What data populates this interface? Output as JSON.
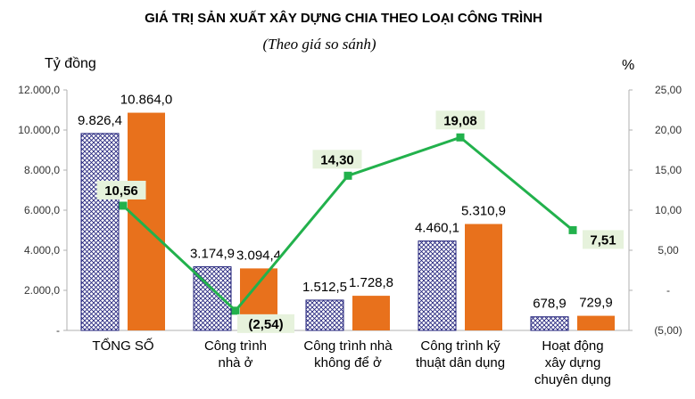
{
  "chart_data": {
    "type": "bar",
    "title": "GIÁ TRỊ SẢN XUẤT XÂY DỰNG CHIA THEO LOẠI CÔNG TRÌNH",
    "subtitle": "(Theo giá so sánh)",
    "ylabel_left": "Tỷ đồng",
    "ylabel_right": "%",
    "categories": [
      [
        "TỔNG SỐ"
      ],
      [
        "Công trình",
        "nhà ở"
      ],
      [
        "Công trình nhà",
        "không để ở"
      ],
      [
        "Công trình kỹ",
        "thuật dân dụng"
      ],
      [
        "Hoạt động",
        "xây dựng",
        "chuyên dụng"
      ]
    ],
    "series": [
      {
        "values": [
          9826.4,
          3174.9,
          1512.5,
          4460.1,
          678.9
        ],
        "labels": [
          "9.826,4",
          "3.174,9",
          "1.512,5",
          "4.460,1",
          "678,9"
        ],
        "color": "#1f1f7a",
        "pattern": "crosshatch"
      },
      {
        "values": [
          10864.0,
          3094.4,
          1728.8,
          5310.9,
          729.9
        ],
        "labels": [
          "10.864,0",
          "3.094,4",
          "1.728,8",
          "5.310,9",
          "729,9"
        ],
        "color": "#e8711c"
      },
      {
        "type": "line",
        "axis": "right",
        "values": [
          10.56,
          -2.54,
          14.3,
          19.08,
          7.51
        ],
        "labels": [
          "10,56",
          "(2,54)",
          "14,30",
          "19,08",
          "7,51"
        ],
        "color": "#22b14c"
      }
    ],
    "ylim_left": [
      0,
      12000
    ],
    "yticks_left": [
      {
        "v": 0,
        "label": "-"
      },
      {
        "v": 2000,
        "label": "2.000,0"
      },
      {
        "v": 4000,
        "label": "4.000,0"
      },
      {
        "v": 6000,
        "label": "6.000,0"
      },
      {
        "v": 8000,
        "label": "8.000,0"
      },
      {
        "v": 10000,
        "label": "10.000,0"
      },
      {
        "v": 12000,
        "label": "12.000,0"
      }
    ],
    "ylim_right": [
      -5,
      25
    ],
    "yticks_right": [
      {
        "v": -5,
        "label": "(5,00)"
      },
      {
        "v": 0,
        "label": "-"
      },
      {
        "v": 5,
        "label": "5,00"
      },
      {
        "v": 10,
        "label": "10,00"
      },
      {
        "v": 15,
        "label": "15,00"
      },
      {
        "v": 20,
        "label": "20,00"
      },
      {
        "v": 25,
        "label": "25,00"
      }
    ],
    "grid": false,
    "legend": "none"
  }
}
